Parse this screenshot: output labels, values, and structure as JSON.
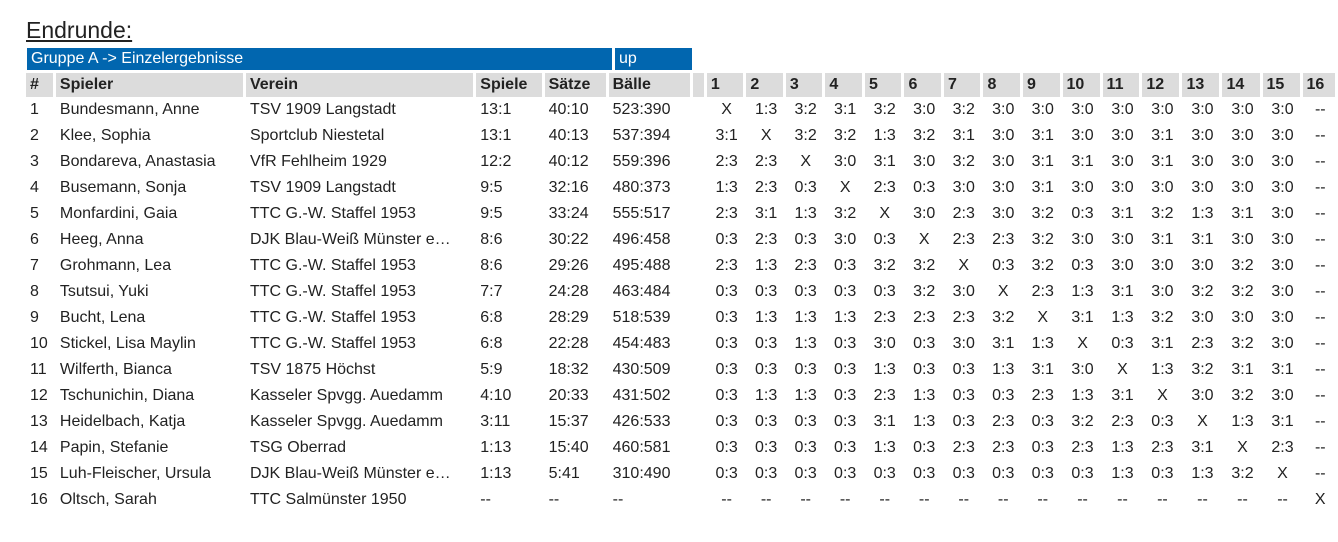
{
  "title": "Endrunde:",
  "group_label": "Gruppe A -> Einzelergebnisse",
  "up_label": "up",
  "headers": {
    "idx": "#",
    "player": "Spieler",
    "club": "Verein",
    "games": "Spiele",
    "sets": "Sätze",
    "balls": "Bälle",
    "opponents": [
      "1",
      "2",
      "3",
      "4",
      "5",
      "6",
      "7",
      "8",
      "9",
      "10",
      "11",
      "12",
      "13",
      "14",
      "15",
      "16"
    ]
  },
  "rows": [
    {
      "idx": "1",
      "name": "Bundesmann, Anne",
      "club": "TSV 1909 Langstadt",
      "games": "13:1",
      "sets": "40:10",
      "balls": "523:390",
      "results": [
        "X",
        "1:3",
        "3:2",
        "3:1",
        "3:2",
        "3:0",
        "3:2",
        "3:0",
        "3:0",
        "3:0",
        "3:0",
        "3:0",
        "3:0",
        "3:0",
        "3:0",
        "--"
      ]
    },
    {
      "idx": "2",
      "name": "Klee, Sophia",
      "club": "Sportclub Niestetal",
      "games": "13:1",
      "sets": "40:13",
      "balls": "537:394",
      "results": [
        "3:1",
        "X",
        "3:2",
        "3:2",
        "1:3",
        "3:2",
        "3:1",
        "3:0",
        "3:1",
        "3:0",
        "3:0",
        "3:1",
        "3:0",
        "3:0",
        "3:0",
        "--"
      ]
    },
    {
      "idx": "3",
      "name": "Bondareva, Anastasia",
      "club": "VfR Fehlheim 1929",
      "games": "12:2",
      "sets": "40:12",
      "balls": "559:396",
      "results": [
        "2:3",
        "2:3",
        "X",
        "3:0",
        "3:1",
        "3:0",
        "3:2",
        "3:0",
        "3:1",
        "3:1",
        "3:0",
        "3:1",
        "3:0",
        "3:0",
        "3:0",
        "--"
      ]
    },
    {
      "idx": "4",
      "name": "Busemann, Sonja",
      "club": "TSV 1909 Langstadt",
      "games": "9:5",
      "sets": "32:16",
      "balls": "480:373",
      "results": [
        "1:3",
        "2:3",
        "0:3",
        "X",
        "2:3",
        "0:3",
        "3:0",
        "3:0",
        "3:1",
        "3:0",
        "3:0",
        "3:0",
        "3:0",
        "3:0",
        "3:0",
        "--"
      ]
    },
    {
      "idx": "5",
      "name": "Monfardini, Gaia",
      "club": "TTC G.-W. Staffel 1953",
      "games": "9:5",
      "sets": "33:24",
      "balls": "555:517",
      "results": [
        "2:3",
        "3:1",
        "1:3",
        "3:2",
        "X",
        "3:0",
        "2:3",
        "3:0",
        "3:2",
        "0:3",
        "3:1",
        "3:2",
        "1:3",
        "3:1",
        "3:0",
        "--"
      ]
    },
    {
      "idx": "6",
      "name": "Heeg, Anna",
      "club": "DJK Blau-Weiß Münster e…",
      "games": "8:6",
      "sets": "30:22",
      "balls": "496:458",
      "results": [
        "0:3",
        "2:3",
        "0:3",
        "3:0",
        "0:3",
        "X",
        "2:3",
        "2:3",
        "3:2",
        "3:0",
        "3:0",
        "3:1",
        "3:1",
        "3:0",
        "3:0",
        "--"
      ]
    },
    {
      "idx": "7",
      "name": "Grohmann, Lea",
      "club": "TTC G.-W. Staffel 1953",
      "games": "8:6",
      "sets": "29:26",
      "balls": "495:488",
      "results": [
        "2:3",
        "1:3",
        "2:3",
        "0:3",
        "3:2",
        "3:2",
        "X",
        "0:3",
        "3:2",
        "0:3",
        "3:0",
        "3:0",
        "3:0",
        "3:2",
        "3:0",
        "--"
      ]
    },
    {
      "idx": "8",
      "name": "Tsutsui, Yuki",
      "club": "TTC G.-W. Staffel 1953",
      "games": "7:7",
      "sets": "24:28",
      "balls": "463:484",
      "results": [
        "0:3",
        "0:3",
        "0:3",
        "0:3",
        "0:3",
        "3:2",
        "3:0",
        "X",
        "2:3",
        "1:3",
        "3:1",
        "3:0",
        "3:2",
        "3:2",
        "3:0",
        "--"
      ]
    },
    {
      "idx": "9",
      "name": "Bucht, Lena",
      "club": "TTC G.-W. Staffel 1953",
      "games": "6:8",
      "sets": "28:29",
      "balls": "518:539",
      "results": [
        "0:3",
        "1:3",
        "1:3",
        "1:3",
        "2:3",
        "2:3",
        "2:3",
        "3:2",
        "X",
        "3:1",
        "1:3",
        "3:2",
        "3:0",
        "3:0",
        "3:0",
        "--"
      ]
    },
    {
      "idx": "10",
      "name": "Stickel, Lisa Maylin",
      "club": "TTC G.-W. Staffel 1953",
      "games": "6:8",
      "sets": "22:28",
      "balls": "454:483",
      "results": [
        "0:3",
        "0:3",
        "1:3",
        "0:3",
        "3:0",
        "0:3",
        "3:0",
        "3:1",
        "1:3",
        "X",
        "0:3",
        "3:1",
        "2:3",
        "3:2",
        "3:0",
        "--"
      ]
    },
    {
      "idx": "11",
      "name": "Wilferth, Bianca",
      "club": "TSV 1875 Höchst",
      "games": "5:9",
      "sets": "18:32",
      "balls": "430:509",
      "results": [
        "0:3",
        "0:3",
        "0:3",
        "0:3",
        "1:3",
        "0:3",
        "0:3",
        "1:3",
        "3:1",
        "3:0",
        "X",
        "1:3",
        "3:2",
        "3:1",
        "3:1",
        "--"
      ]
    },
    {
      "idx": "12",
      "name": "Tschunichin, Diana",
      "club": "Kasseler Spvgg. Auedamm",
      "games": "4:10",
      "sets": "20:33",
      "balls": "431:502",
      "results": [
        "0:3",
        "1:3",
        "1:3",
        "0:3",
        "2:3",
        "1:3",
        "0:3",
        "0:3",
        "2:3",
        "1:3",
        "3:1",
        "X",
        "3:0",
        "3:2",
        "3:0",
        "--"
      ]
    },
    {
      "idx": "13",
      "name": "Heidelbach, Katja",
      "club": "Kasseler Spvgg. Auedamm",
      "games": "3:11",
      "sets": "15:37",
      "balls": "426:533",
      "results": [
        "0:3",
        "0:3",
        "0:3",
        "0:3",
        "3:1",
        "1:3",
        "0:3",
        "2:3",
        "0:3",
        "3:2",
        "2:3",
        "0:3",
        "X",
        "1:3",
        "3:1",
        "--"
      ]
    },
    {
      "idx": "14",
      "name": "Papin, Stefanie",
      "club": "TSG Oberrad",
      "games": "1:13",
      "sets": "15:40",
      "balls": "460:581",
      "results": [
        "0:3",
        "0:3",
        "0:3",
        "0:3",
        "1:3",
        "0:3",
        "2:3",
        "2:3",
        "0:3",
        "2:3",
        "1:3",
        "2:3",
        "3:1",
        "X",
        "2:3",
        "--"
      ]
    },
    {
      "idx": "15",
      "name": "Luh-Fleischer, Ursula",
      "club": "DJK Blau-Weiß Münster e…",
      "games": "1:13",
      "sets": "5:41",
      "balls": "310:490",
      "results": [
        "0:3",
        "0:3",
        "0:3",
        "0:3",
        "0:3",
        "0:3",
        "0:3",
        "0:3",
        "0:3",
        "0:3",
        "1:3",
        "0:3",
        "1:3",
        "3:2",
        "X",
        "--"
      ]
    },
    {
      "idx": "16",
      "name": "Oltsch, Sarah",
      "club": "TTC Salmünster 1950",
      "games": "--",
      "sets": "--",
      "balls": "--",
      "results": [
        "--",
        "--",
        "--",
        "--",
        "--",
        "--",
        "--",
        "--",
        "--",
        "--",
        "--",
        "--",
        "--",
        "--",
        "--",
        "X"
      ]
    }
  ]
}
